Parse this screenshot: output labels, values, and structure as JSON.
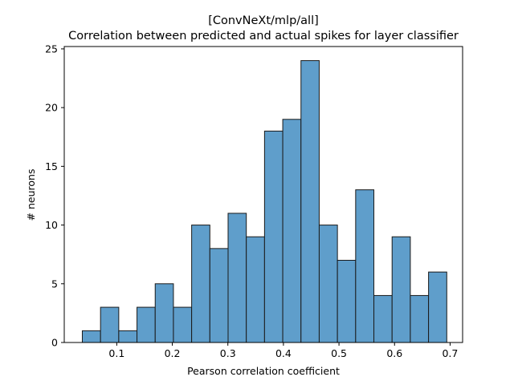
{
  "chart_data": {
    "type": "bar",
    "title": "[ConvNeXt/mlp/all]",
    "subtitle": "Correlation between predicted and actual spikes for layer classifier",
    "xlabel": "Pearson correlation coefficient",
    "ylabel": "# neurons",
    "xlim": [
      0.0055,
      0.7225
    ],
    "ylim": [
      0,
      25.2
    ],
    "xticks": [
      0.1,
      0.2,
      0.3,
      0.4,
      0.5,
      0.6,
      0.7
    ],
    "yticks": [
      0,
      5,
      10,
      15,
      20,
      25
    ],
    "bin_edges": [
      0.038,
      0.0708,
      0.1036,
      0.1364,
      0.1692,
      0.202,
      0.2348,
      0.2676,
      0.3004,
      0.3332,
      0.366,
      0.3988,
      0.4316,
      0.4644,
      0.4972,
      0.53,
      0.5628,
      0.5956,
      0.6284,
      0.6612,
      0.694
    ],
    "counts": [
      1,
      3,
      1,
      3,
      5,
      3,
      10,
      8,
      11,
      9,
      18,
      19,
      24,
      10,
      7,
      13,
      4,
      9,
      4,
      6
    ],
    "bar_color": "#5f9ecb",
    "edge_color": "#1a1a1a",
    "grid": false,
    "legend": "none"
  }
}
